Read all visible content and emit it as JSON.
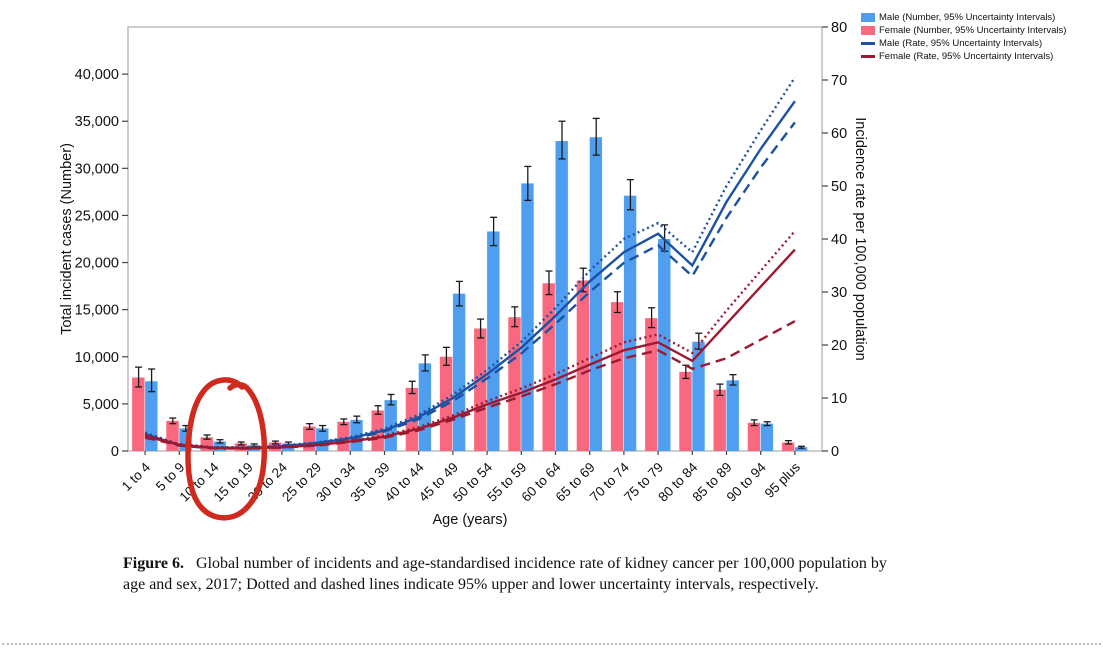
{
  "figure": {
    "caption_label": "Figure 6.",
    "caption_text": "Global number of incidents and age-standardised incidence rate of kidney cancer per 100,000 population by age and sex, 2017; Dotted and dashed lines indicate 95% upper and lower uncertainty intervals, respectively."
  },
  "legend": {
    "items": [
      {
        "label": "Male (Number, 95% Uncertainty Intervals)",
        "swatch": "bar",
        "color": "#4f9ef0"
      },
      {
        "label": "Female (Number, 95% Uncertainty Intervals)",
        "swatch": "bar",
        "color": "#f9687f"
      },
      {
        "label": "Male (Rate, 95% Uncertainty Intervals)",
        "swatch": "line",
        "color": "#1b52a4"
      },
      {
        "label": "Female (Rate, 95% Uncertainty Intervals)",
        "swatch": "line",
        "color": "#9c1a31"
      }
    ]
  },
  "annotation": {
    "type": "hand-drawn-red-circle",
    "color": "#d02a1e",
    "encircled_labels": [
      "10 to 14",
      "15 to 19"
    ]
  },
  "chart_data": {
    "type": "bar",
    "combo": "grouped bars (left axis) + uncertainty lines (right axis)",
    "categories": [
      "1 to 4",
      "5 to 9",
      "10 to 14",
      "15 to 19",
      "20 to 24",
      "25 to 29",
      "30 to 34",
      "35 to 39",
      "40 to 44",
      "45 to 49",
      "50 to 54",
      "55 to 59",
      "60 to 64",
      "65 to 69",
      "70 to 74",
      "75 to 79",
      "80 to 84",
      "85 to 89",
      "90 to 94",
      "95 plus"
    ],
    "xlabel": "Age (years)",
    "x_axis": {
      "title": "Age (years)"
    },
    "y_axis_left": {
      "title": "Total incident cases (Number)",
      "max": 45000,
      "ticks": [
        {
          "value": 0,
          "label": "0"
        },
        {
          "value": 5000,
          "label": "5,000"
        },
        {
          "value": 10000,
          "label": "10,000"
        },
        {
          "value": 15000,
          "label": "15,000"
        },
        {
          "value": 20000,
          "label": "20,000"
        },
        {
          "value": 25000,
          "label": "25,000"
        },
        {
          "value": 30000,
          "label": "30,000"
        },
        {
          "value": 35000,
          "label": "35,000"
        },
        {
          "value": 40000,
          "label": "40,000"
        }
      ]
    },
    "y_axis_right": {
      "title": "Incidence rate per 100,000 population",
      "max": 80,
      "ticks": [
        {
          "value": 0,
          "label": "0"
        },
        {
          "value": 10,
          "label": "10"
        },
        {
          "value": 20,
          "label": "20"
        },
        {
          "value": 30,
          "label": "30"
        },
        {
          "value": 40,
          "label": "40"
        },
        {
          "value": 50,
          "label": "50"
        },
        {
          "value": 60,
          "label": "60"
        },
        {
          "value": 70,
          "label": "70"
        },
        {
          "value": 80,
          "label": "80"
        }
      ]
    },
    "bar_series": [
      {
        "name": "Female (Number)",
        "color": "#f9687f",
        "values": [
          7800,
          3200,
          1450,
          800,
          900,
          2600,
          3100,
          4300,
          6700,
          10000,
          13000,
          14200,
          17800,
          18100,
          15800,
          14100,
          8400,
          6500,
          3000,
          900
        ],
        "ci_low": [
          6800,
          2900,
          1250,
          650,
          750,
          2300,
          2800,
          3900,
          6100,
          9100,
          12000,
          13200,
          16600,
          16900,
          14700,
          13100,
          7700,
          5900,
          2700,
          750
        ],
        "ci_high": [
          8900,
          3500,
          1700,
          950,
          1050,
          2900,
          3400,
          4800,
          7400,
          11000,
          14000,
          15300,
          19100,
          19400,
          16900,
          15200,
          9100,
          7100,
          3300,
          1100
        ]
      },
      {
        "name": "Male (Number)",
        "color": "#4f9ef0",
        "values": [
          7400,
          2400,
          1000,
          600,
          800,
          2400,
          3300,
          5400,
          9300,
          16700,
          23300,
          28400,
          32900,
          33300,
          27100,
          22500,
          11600,
          7500,
          2900,
          400
        ],
        "ci_low": [
          6300,
          2100,
          850,
          500,
          650,
          2100,
          3000,
          4900,
          8500,
          15400,
          21800,
          26600,
          31000,
          31400,
          25600,
          21200,
          10800,
          7000,
          2700,
          300
        ],
        "ci_high": [
          8700,
          2700,
          1200,
          750,
          950,
          2700,
          3700,
          6000,
          10200,
          18000,
          24800,
          30200,
          35000,
          35300,
          28800,
          24000,
          12500,
          8100,
          3100,
          500
        ]
      }
    ],
    "line_series": [
      {
        "name": "Male (Rate)",
        "style": "solid",
        "color": "#1b52a4",
        "values": [
          3.2,
          1.1,
          0.6,
          0.6,
          0.9,
          1.5,
          2.4,
          3.9,
          6.4,
          10.0,
          14.5,
          19.5,
          25.5,
          32.0,
          37.5,
          41.0,
          35.0,
          47.0,
          57.0,
          66.0
        ]
      },
      {
        "name": "Male (Rate) 95% upper",
        "style": "dotted",
        "color": "#1b52a4",
        "values": [
          3.5,
          1.2,
          0.7,
          0.7,
          1.0,
          1.6,
          2.6,
          4.2,
          6.8,
          10.6,
          15.3,
          20.6,
          27.0,
          34.0,
          40.0,
          43.0,
          37.5,
          50.0,
          60.5,
          70.5
        ]
      },
      {
        "name": "Male (Rate) 95% lower",
        "style": "dashed",
        "color": "#1b52a4",
        "values": [
          2.9,
          1.0,
          0.5,
          0.5,
          0.8,
          1.4,
          2.2,
          3.7,
          6.0,
          9.4,
          13.7,
          18.4,
          24.0,
          30.0,
          35.5,
          38.8,
          33.0,
          44.0,
          53.5,
          62.0
        ]
      },
      {
        "name": "Female (Rate)",
        "style": "solid",
        "color": "#9c1a31",
        "values": [
          2.8,
          1.2,
          0.6,
          0.5,
          0.7,
          1.1,
          1.8,
          2.7,
          4.2,
          6.3,
          8.8,
          11.0,
          13.5,
          16.3,
          19.0,
          20.5,
          17.0,
          24.0,
          31.0,
          38.0
        ]
      },
      {
        "name": "Female (Rate) 95% upper",
        "style": "dotted",
        "color": "#9c1a31",
        "values": [
          3.1,
          1.3,
          0.7,
          0.6,
          0.8,
          1.2,
          1.9,
          2.9,
          4.5,
          6.7,
          9.4,
          11.8,
          14.5,
          17.5,
          20.5,
          22.0,
          18.5,
          26.5,
          34.0,
          41.5
        ]
      },
      {
        "name": "Female (Rate) 95% lower",
        "style": "dashed",
        "color": "#9c1a31",
        "values": [
          2.5,
          1.1,
          0.5,
          0.45,
          0.65,
          1.0,
          1.7,
          2.5,
          3.9,
          5.9,
          8.2,
          10.3,
          12.6,
          15.2,
          17.5,
          19.0,
          15.5,
          17.5,
          21.0,
          24.5
        ]
      }
    ],
    "legend_position": "top-right",
    "grid": false
  }
}
